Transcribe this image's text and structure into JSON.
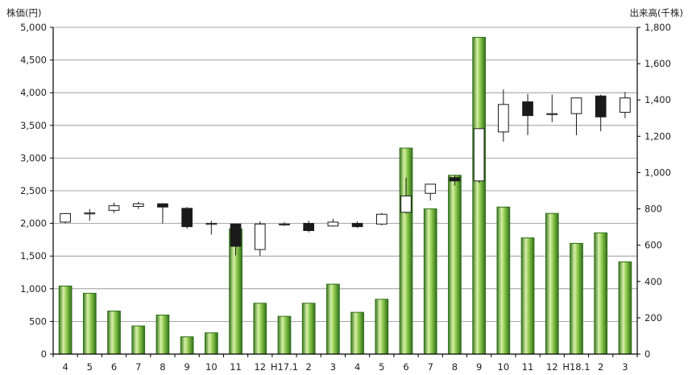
{
  "chart_data": {
    "type": "candlestick+bar",
    "left_axis": {
      "label": "株価(円)",
      "range": [
        0,
        5000
      ],
      "ticks": [
        "0",
        "500",
        "1,000",
        "1,500",
        "2,000",
        "2,500",
        "3,000",
        "3,500",
        "4,000",
        "4,500",
        "5,000"
      ]
    },
    "right_axis": {
      "label": "出来高(千株)",
      "range": [
        0,
        1800
      ],
      "ticks": [
        "0",
        "200",
        "400",
        "600",
        "800",
        "1,000",
        "1,200",
        "1,400",
        "1,600",
        "1,800"
      ]
    },
    "grid": "horizontal",
    "categories": [
      "4",
      "5",
      "6",
      "7",
      "8",
      "9",
      "10",
      "11",
      "12",
      "H17.1",
      "2",
      "3",
      "4",
      "5",
      "6",
      "7",
      "8",
      "9",
      "10",
      "11",
      "12",
      "H18.1",
      "2",
      "3"
    ],
    "volume": [
      375,
      335,
      237,
      155,
      215,
      95,
      117,
      690,
      280,
      208,
      280,
      385,
      230,
      302,
      1135,
      800,
      985,
      1745,
      810,
      640,
      775,
      610,
      668,
      508
    ],
    "ohlc": [
      {
        "open": 2020,
        "high": 2160,
        "low": 2000,
        "close": 2150
      },
      {
        "open": 2160,
        "high": 2220,
        "low": 2040,
        "close": 2160
      },
      {
        "open": 2200,
        "high": 2320,
        "low": 2160,
        "close": 2270
      },
      {
        "open": 2260,
        "high": 2330,
        "low": 2220,
        "close": 2300
      },
      {
        "open": 2300,
        "high": 2310,
        "low": 2000,
        "close": 2250
      },
      {
        "open": 2230,
        "high": 2250,
        "low": 1920,
        "close": 1950
      },
      {
        "open": 2000,
        "high": 2040,
        "low": 1830,
        "close": 2000
      },
      {
        "open": 1990,
        "high": 1990,
        "low": 1510,
        "close": 1650
      },
      {
        "open": 1600,
        "high": 2030,
        "low": 1500,
        "close": 1990
      },
      {
        "open": 1990,
        "high": 2020,
        "low": 1960,
        "close": 1990
      },
      {
        "open": 2000,
        "high": 2040,
        "low": 1860,
        "close": 1890
      },
      {
        "open": 1960,
        "high": 2070,
        "low": 1950,
        "close": 2020
      },
      {
        "open": 2000,
        "high": 2030,
        "low": 1930,
        "close": 1950
      },
      {
        "open": 1990,
        "high": 2160,
        "low": 1970,
        "close": 2140
      },
      {
        "open": 2170,
        "high": 2700,
        "low": 2150,
        "close": 2420
      },
      {
        "open": 2460,
        "high": 2580,
        "low": 2350,
        "close": 2600
      },
      {
        "open": 2700,
        "high": 2740,
        "low": 2580,
        "close": 2650
      },
      {
        "open": 2650,
        "high": 3450,
        "low": 2620,
        "close": 3450
      },
      {
        "open": 3400,
        "high": 4050,
        "low": 3250,
        "close": 3820
      },
      {
        "open": 3860,
        "high": 3980,
        "low": 3350,
        "close": 3650
      },
      {
        "open": 3680,
        "high": 3970,
        "low": 3550,
        "close": 3680
      },
      {
        "open": 3680,
        "high": 3920,
        "low": 3350,
        "close": 3920
      },
      {
        "open": 3950,
        "high": 3970,
        "low": 3410,
        "close": 3630
      },
      {
        "open": 3700,
        "high": 4010,
        "low": 3610,
        "close": 3920
      }
    ],
    "colors": {
      "volume_fill": "#8cc84b",
      "volume_light": "#d8f0a8",
      "volume_dark": "#2f6e1a",
      "candle_up": "#ffffff",
      "candle_down": "#1a1a1a",
      "grid": "#8a8a8a"
    }
  }
}
